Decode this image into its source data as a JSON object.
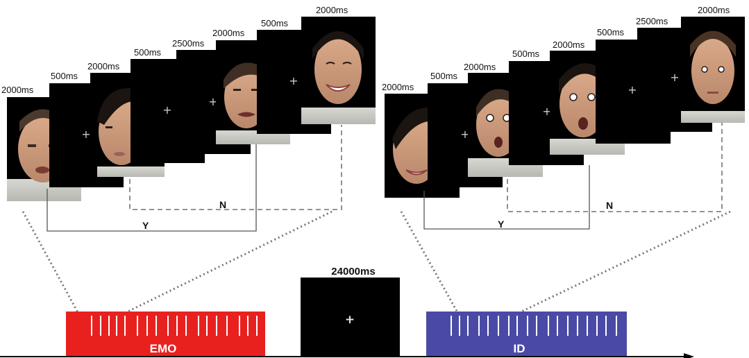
{
  "left_sequence": {
    "frames": [
      {
        "duration": "2000ms",
        "content": "face-angry-man"
      },
      {
        "duration": "500ms",
        "content": "fixation-cross"
      },
      {
        "duration": "2000ms",
        "content": "face-neutral-woman"
      },
      {
        "duration": "500ms",
        "content": "fixation-cross"
      },
      {
        "duration": "2500ms",
        "content": "fixation-cross"
      },
      {
        "duration": "2000ms",
        "content": "face-disgust-man"
      },
      {
        "duration": "500ms",
        "content": "fixation-cross"
      },
      {
        "duration": "2000ms",
        "content": "face-happy-woman"
      }
    ],
    "yes_label": "Y",
    "no_label": "N"
  },
  "right_sequence": {
    "frames": [
      {
        "duration": "2000ms",
        "content": "face-happy-woman"
      },
      {
        "duration": "500ms",
        "content": "fixation-cross"
      },
      {
        "duration": "2000ms",
        "content": "face-surprised-man"
      },
      {
        "duration": "500ms",
        "content": "fixation-cross"
      },
      {
        "duration": "2000ms",
        "content": "face-surprised-woman"
      },
      {
        "duration": "500ms",
        "content": "fixation-cross"
      },
      {
        "duration": "2500ms",
        "content": "fixation-cross"
      },
      {
        "duration": "2000ms",
        "content": "face-neutral-man"
      }
    ],
    "yes_label": "Y",
    "no_label": "N"
  },
  "timeline": {
    "blocks": [
      {
        "label": "EMO",
        "color": "#e8211f"
      },
      {
        "label": "ID",
        "color": "#4a4aa6"
      }
    ],
    "rest": {
      "duration": "24000ms",
      "symbol": "+"
    }
  },
  "colors": {
    "frame": "#000000",
    "fixation": "#cccccc",
    "connector": "#666666",
    "text": "#111111"
  }
}
